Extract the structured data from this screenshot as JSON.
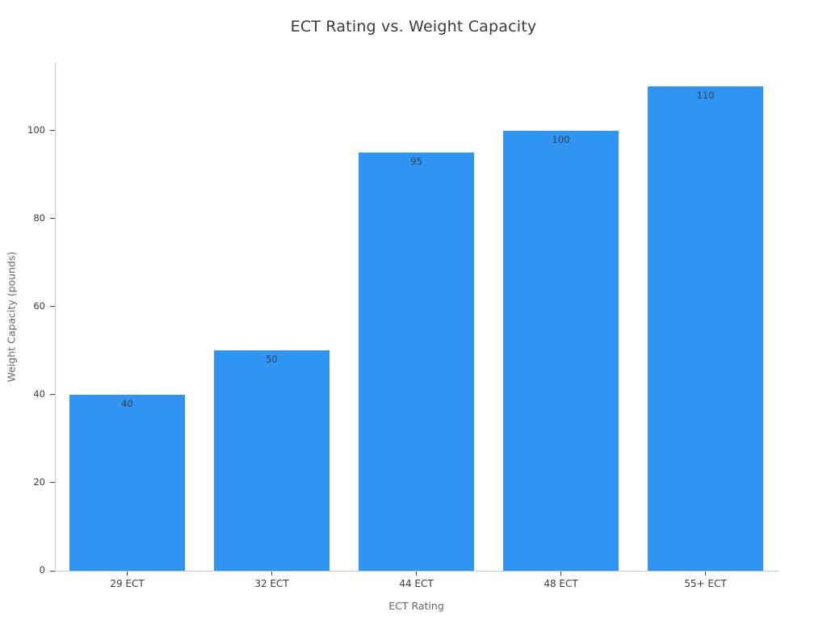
{
  "chart_data": {
    "type": "bar",
    "title": "ECT Rating vs. Weight Capacity",
    "xlabel": "ECT Rating",
    "ylabel": "Weight Capacity (pounds)",
    "categories": [
      "29 ECT",
      "32 ECT",
      "44 ECT",
      "48 ECT",
      "55+ ECT"
    ],
    "values": [
      40,
      50,
      95,
      100,
      110
    ],
    "value_labels": [
      "40",
      "50",
      "95",
      "100",
      "110"
    ],
    "yticks": [
      0,
      20,
      40,
      60,
      80,
      100
    ],
    "ylim": [
      0,
      115.4
    ],
    "grid": false,
    "legend": null,
    "bar_color": "#2F94F2",
    "colors": {
      "title_text": "#3b3b3b",
      "tick_text": "#3b3b3b",
      "axis_title_text": "#666666",
      "spine": "#c9c9c9",
      "tick_mark": "#454545",
      "bar_value_text": "#31404f",
      "background": "#ffffff"
    }
  }
}
